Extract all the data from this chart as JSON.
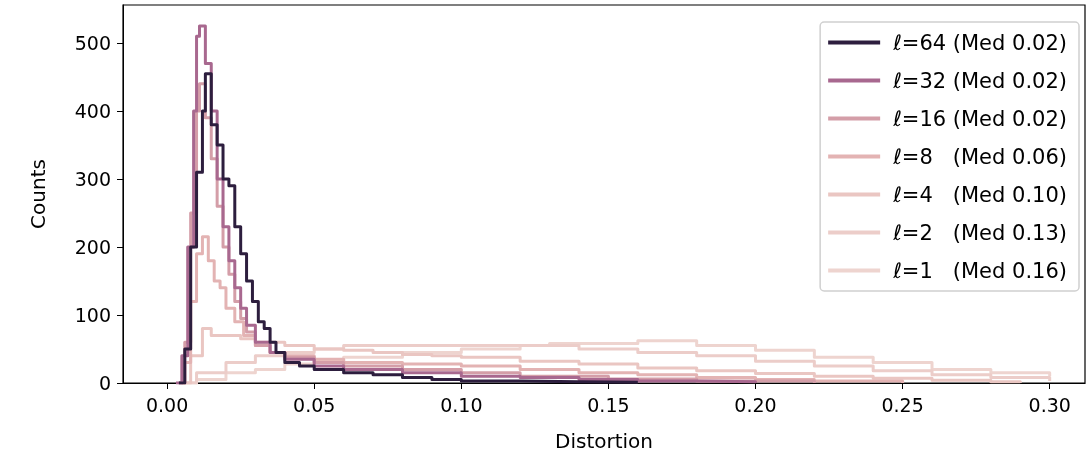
{
  "chart_data": {
    "type": "step",
    "xlabel": "Distortion",
    "ylabel": "Counts",
    "xlim": [
      -0.015,
      0.312
    ],
    "ylim": [
      0,
      556
    ],
    "xticks": [
      {
        "value": 0,
        "label": "0.00"
      },
      {
        "value": 0.05,
        "label": "0.05"
      },
      {
        "value": 0.1,
        "label": "0.10"
      },
      {
        "value": 0.15,
        "label": "0.15"
      },
      {
        "value": 0.2,
        "label": "0.20"
      },
      {
        "value": 0.25,
        "label": "0.25"
      },
      {
        "value": 0.3,
        "label": "0.30"
      }
    ],
    "yticks": [
      0,
      100,
      200,
      300,
      400,
      500
    ],
    "grid": false,
    "legend": "top right",
    "marker": "none",
    "line_style": "solid",
    "series": [
      {
        "name": "ℓ=64 (Med 0.02)",
        "color": "#2d1e3e",
        "x": [
          0.004,
          0.006,
          0.008,
          0.01,
          0.012,
          0.013,
          0.015,
          0.017,
          0.019,
          0.021,
          0.023,
          0.025,
          0.027,
          0.029,
          0.031,
          0.033,
          0.035,
          0.037,
          0.04,
          0.045,
          0.05,
          0.06,
          0.07,
          0.08,
          0.09,
          0.1,
          0.12,
          0.14,
          0.16
        ],
        "values": [
          0,
          50,
          200,
          310,
          400,
          455,
          380,
          350,
          300,
          290,
          230,
          190,
          150,
          120,
          90,
          80,
          60,
          45,
          30,
          25,
          20,
          15,
          12,
          8,
          5,
          3,
          2,
          1,
          0
        ]
      },
      {
        "name": "ℓ=32 (Med 0.02)",
        "color": "#a8688f",
        "x": [
          0.003,
          0.005,
          0.007,
          0.009,
          0.01,
          0.011,
          0.013,
          0.015,
          0.017,
          0.019,
          0.021,
          0.023,
          0.025,
          0.027,
          0.03,
          0.035,
          0.04,
          0.05,
          0.06,
          0.08,
          0.1,
          0.12,
          0.14,
          0.16,
          0.18,
          0.2
        ],
        "values": [
          0,
          40,
          200,
          400,
          510,
          525,
          470,
          400,
          300,
          230,
          180,
          140,
          110,
          85,
          60,
          45,
          35,
          25,
          20,
          15,
          10,
          8,
          5,
          3,
          2,
          0
        ]
      },
      {
        "name": "ℓ=16 (Med 0.02)",
        "color": "#d49ea8",
        "x": [
          0.004,
          0.006,
          0.008,
          0.01,
          0.011,
          0.013,
          0.015,
          0.017,
          0.019,
          0.021,
          0.023,
          0.025,
          0.027,
          0.03,
          0.035,
          0.04,
          0.05,
          0.06,
          0.08,
          0.1,
          0.12,
          0.15,
          0.18,
          0.22
        ],
        "values": [
          0,
          60,
          250,
          400,
          440,
          390,
          330,
          260,
          200,
          160,
          120,
          95,
          75,
          55,
          45,
          38,
          30,
          25,
          20,
          15,
          10,
          6,
          3,
          0
        ]
      },
      {
        "name": "ℓ=8   (Med 0.06)",
        "color": "#e3b3b3",
        "x": [
          0.004,
          0.006,
          0.008,
          0.01,
          0.012,
          0.014,
          0.016,
          0.018,
          0.02,
          0.023,
          0.026,
          0.03,
          0.035,
          0.04,
          0.05,
          0.06,
          0.08,
          0.1,
          0.12,
          0.14,
          0.16,
          0.18,
          0.2,
          0.22,
          0.25
        ],
        "values": [
          0,
          30,
          120,
          190,
          215,
          180,
          150,
          140,
          110,
          90,
          70,
          55,
          45,
          40,
          35,
          30,
          28,
          25,
          20,
          15,
          12,
          8,
          5,
          3,
          0
        ]
      },
      {
        "name": "ℓ=4   (Med 0.10)",
        "color": "#eac6c2",
        "x": [
          0.005,
          0.008,
          0.012,
          0.015,
          0.02,
          0.025,
          0.03,
          0.04,
          0.05,
          0.06,
          0.07,
          0.08,
          0.09,
          0.1,
          0.12,
          0.14,
          0.16,
          0.18,
          0.2,
          0.22,
          0.24,
          0.26,
          0.28,
          0.29
        ],
        "values": [
          0,
          40,
          80,
          70,
          70,
          65,
          60,
          55,
          50,
          48,
          45,
          42,
          40,
          38,
          32,
          28,
          22,
          18,
          14,
          10,
          7,
          4,
          2,
          0
        ]
      },
      {
        "name": "ℓ=2   (Med 0.13)",
        "color": "#eccdc9",
        "x": [
          0.005,
          0.01,
          0.02,
          0.03,
          0.04,
          0.05,
          0.06,
          0.08,
          0.1,
          0.12,
          0.14,
          0.16,
          0.18,
          0.2,
          0.22,
          0.24,
          0.26,
          0.28,
          0.3
        ],
        "values": [
          0,
          15,
          30,
          40,
          45,
          50,
          55,
          55,
          55,
          55,
          50,
          45,
          40,
          32,
          25,
          18,
          12,
          8,
          3
        ]
      },
      {
        "name": "ℓ=1   (Med 0.16)",
        "color": "#eed4cf",
        "x": [
          0.005,
          0.01,
          0.02,
          0.03,
          0.04,
          0.05,
          0.06,
          0.08,
          0.1,
          0.12,
          0.13,
          0.15,
          0.16,
          0.18,
          0.2,
          0.22,
          0.24,
          0.26,
          0.28,
          0.3
        ],
        "values": [
          0,
          5,
          15,
          20,
          28,
          32,
          38,
          45,
          50,
          55,
          58,
          58,
          62,
          55,
          48,
          38,
          30,
          20,
          15,
          10
        ]
      }
    ]
  }
}
